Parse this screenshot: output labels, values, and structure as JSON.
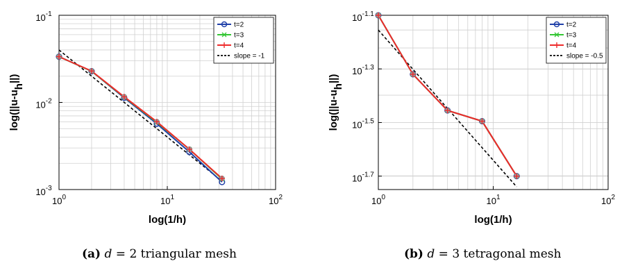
{
  "chart_data": [
    {
      "type": "line",
      "xlabel": "log(1/h)",
      "ylabel": "log(||u-u",
      "ylabel_sub": "h",
      "ylabel_tail": "||)",
      "xscale": "log",
      "yscale": "log",
      "xlim": [
        1,
        100
      ],
      "ylim": [
        0.001,
        0.1
      ],
      "grid": true,
      "legend_placement": "top-right",
      "x_ticks": [
        {
          "value": 1,
          "base": "10",
          "exp": "0"
        },
        {
          "value": 10,
          "base": "10",
          "exp": "1"
        },
        {
          "value": 100,
          "base": "10",
          "exp": "2"
        }
      ],
      "y_ticks": [
        {
          "value": 0.001,
          "base": "10",
          "exp": "-3"
        },
        {
          "value": 0.01,
          "base": "10",
          "exp": "-2"
        },
        {
          "value": 0.1,
          "base": "10",
          "exp": "-1"
        }
      ],
      "x": [
        1,
        2,
        4,
        8,
        16,
        32
      ],
      "series": [
        {
          "name": "t=2",
          "color": "#1f3fa8",
          "marker": "circle",
          "values": [
            0.0335,
            0.0228,
            0.0113,
            0.0057,
            0.0027,
            0.00122
          ]
        },
        {
          "name": "t=3",
          "color": "#33c633",
          "marker": "x",
          "values": [
            0.0335,
            0.0228,
            0.0115,
            0.0059,
            0.0029,
            0.00132
          ]
        },
        {
          "name": "t=4",
          "color": "#ee2a2a",
          "marker": "plus",
          "values": [
            0.0335,
            0.0229,
            0.0116,
            0.006,
            0.0029,
            0.00134
          ]
        }
      ],
      "reference": {
        "name": "slope = -1",
        "x": [
          1,
          32
        ],
        "values": [
          0.04,
          0.00125
        ]
      }
    },
    {
      "type": "line",
      "xlabel": "log(1/h)",
      "ylabel": "log(||u-u",
      "ylabel_sub": "h",
      "ylabel_tail": "||)",
      "xscale": "log",
      "yscale": "log",
      "xlim": [
        1,
        100
      ],
      "ylim_exponent": [
        -1.75,
        -1.1
      ],
      "grid": true,
      "legend_placement": "top-right",
      "x_ticks": [
        {
          "value": 1,
          "base": "10",
          "exp": "0"
        },
        {
          "value": 10,
          "base": "10",
          "exp": "1"
        },
        {
          "value": 100,
          "base": "10",
          "exp": "2"
        }
      ],
      "y_ticks": [
        {
          "value": -1.1,
          "base": "10",
          "exp": "-1.1"
        },
        {
          "value": -1.3,
          "base": "10",
          "exp": "-1.3"
        },
        {
          "value": -1.5,
          "base": "10",
          "exp": "-1.5"
        },
        {
          "value": -1.7,
          "base": "10",
          "exp": "-1.7"
        }
      ],
      "x": [
        1,
        2,
        4,
        8,
        16
      ],
      "series": [
        {
          "name": "t=2",
          "color": "#1f3fa8",
          "marker": "circle",
          "values_exponent": [
            -1.1,
            -1.32,
            -1.455,
            -1.495,
            -1.7
          ]
        },
        {
          "name": "t=3",
          "color": "#33c633",
          "marker": "x",
          "values_exponent": [
            -1.1,
            -1.32,
            -1.455,
            -1.495,
            -1.7
          ]
        },
        {
          "name": "t=4",
          "color": "#ee2a2a",
          "marker": "plus",
          "values_exponent": [
            -1.1,
            -1.32,
            -1.455,
            -1.495,
            -1.7
          ]
        }
      ],
      "reference": {
        "name": "slope = -0.5",
        "x": [
          1,
          16
        ],
        "values_exponent": [
          -1.155,
          -1.74
        ]
      }
    }
  ],
  "captions": [
    {
      "tag": "(a)",
      "math": "d",
      "text": " = 2 triangular mesh"
    },
    {
      "tag": "(b)",
      "math": "d",
      "text": " = 3 tetragonal mesh"
    }
  ]
}
